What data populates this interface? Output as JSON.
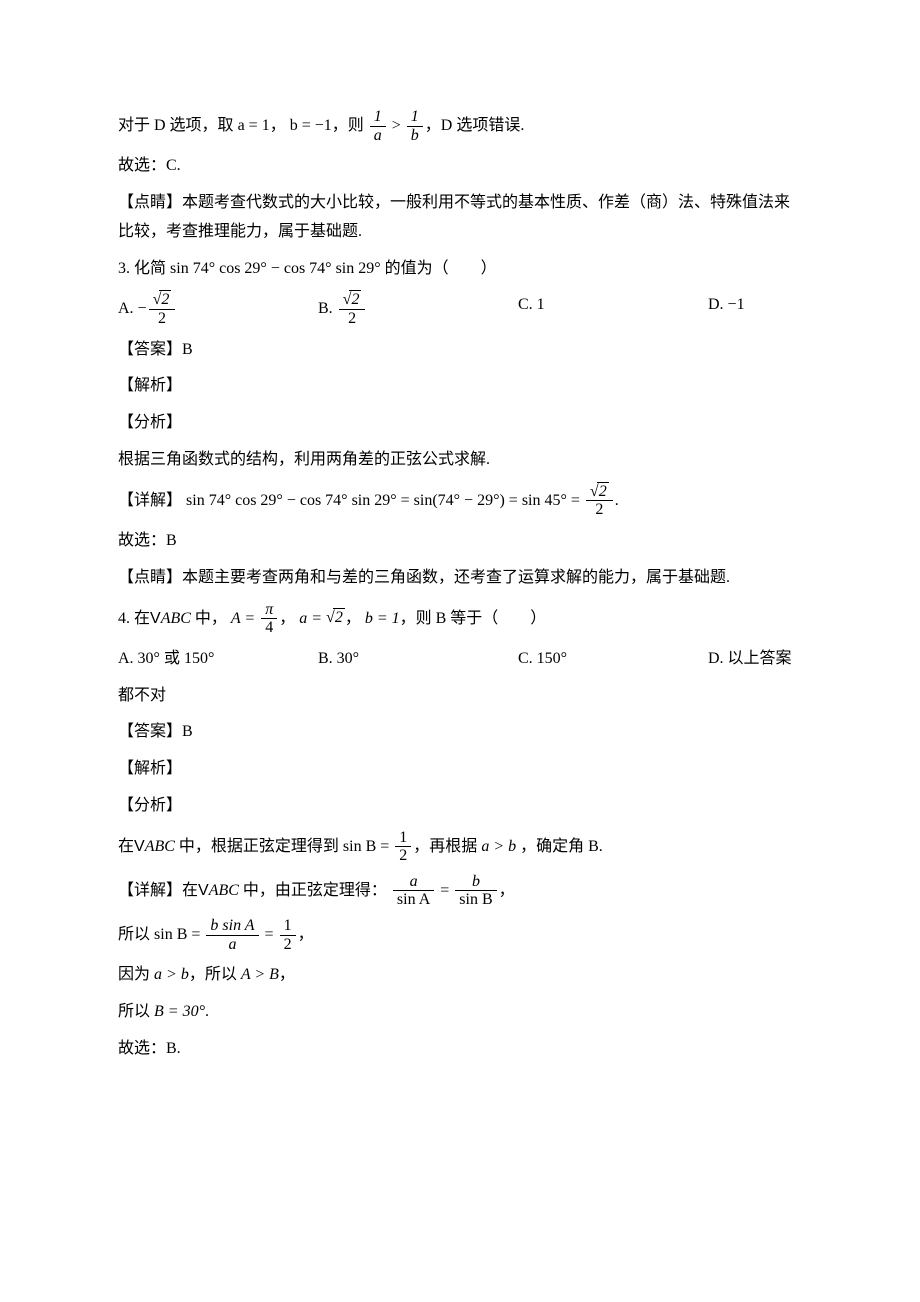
{
  "colors": {
    "text": "#000000",
    "background": "#ffffff"
  },
  "typography": {
    "body_font": "SimSun",
    "math_font": "Times New Roman",
    "body_size_pt": 12
  },
  "content": {
    "p_d_option": {
      "prefix": "对于 D 选项，取",
      "a_eq": "a = 1",
      "comma1": "，",
      "b_eq": "b = −1",
      "then": "，则",
      "frac1_num": "1",
      "frac1_den": "a",
      "gt": ">",
      "frac2_num": "1",
      "frac2_den": "b",
      "suffix": "，D 选项错误."
    },
    "p_guxuan_c": "故选：C.",
    "p_dianjing_2": "【点睛】本题考查代数式的大小比较，一般利用不等式的基本性质、作差（商）法、特殊值法来比较，考查推理能力，属于基础题.",
    "q3": {
      "num": "3. 化简",
      "expr": "sin 74° cos 29° − cos 74° sin 29°",
      "tail": " 的值为（　　）"
    },
    "q3_choices": {
      "A_prefix": "A.  −",
      "A_num": "2",
      "A_den": "2",
      "B_prefix": "B.  ",
      "B_num": "2",
      "B_den": "2",
      "C": "C.  1",
      "D": "D.  −1"
    },
    "q3_answer": "【答案】B",
    "q3_jiexi": "【解析】",
    "q3_fenxi": "【分析】",
    "q3_fenxi_text": "根据三角函数式的结构，利用两角差的正弦公式求解.",
    "q3_detail": {
      "label": "【详解】",
      "expr": "sin 74° cos 29° − cos 74° sin 29° = sin(74° − 29°) = sin 45° = ",
      "frac_num": "2",
      "frac_den": "2",
      "period": "."
    },
    "q3_guxuan": "故选：B",
    "q3_dianjing": "【点睛】本题主要考查两角和与差的三角函数，还考查了运算求解的能力，属于基础题.",
    "q4": {
      "num": "4. 在",
      "tri": "V",
      "abc": "ABC",
      "mid1": " 中，",
      "A_eq": "A = ",
      "A_num": "π",
      "A_den": "4",
      "comma1": "，",
      "a_eq_pre": "a = ",
      "a_val": "2",
      "comma2": "，",
      "b_eq": "b = 1",
      "tail": "，则 B 等于（　　）"
    },
    "q4_choices": {
      "A": "A.  30° 或 150°",
      "B": "B.  30°",
      "C": "C.  150°",
      "D": "D.  以上答案"
    },
    "q4_wrap": "都不对",
    "q4_answer": "【答案】B",
    "q4_jiexi": "【解析】",
    "q4_fenxi": "【分析】",
    "q4_fenxi_text": {
      "pre": "在",
      "tri": "V",
      "abc": "ABC",
      "mid": " 中，根据正弦定理得到  ",
      "sinB": "sin B = ",
      "num": "1",
      "den": "2",
      "post": "，再根据 ",
      "agtb": "a > b",
      "tail": " ，确定角 B."
    },
    "q4_detail": {
      "label": "【详解】在",
      "tri": "V",
      "abc": "ABC",
      "mid": " 中，由正弦定理得：",
      "l_num": "a",
      "l_den": "sin A",
      "eq": "=",
      "r_num": "b",
      "r_den": "sin B",
      "comma": "，"
    },
    "q4_line2": {
      "pre": "所以 ",
      "sinB": "sin B = ",
      "num1": "b sin A",
      "den1": "a",
      "eq": "=",
      "num2": "1",
      "den2": "2",
      "comma": "，"
    },
    "q4_line3": {
      "pre": "因为 ",
      "agtb": "a > b",
      "mid": "，所以 ",
      "AgtB": "A > B",
      "comma": "，"
    },
    "q4_line4": {
      "pre": "所以 ",
      "B": "B = 30°",
      "period": "."
    },
    "q4_guxuan": "故选：B."
  }
}
